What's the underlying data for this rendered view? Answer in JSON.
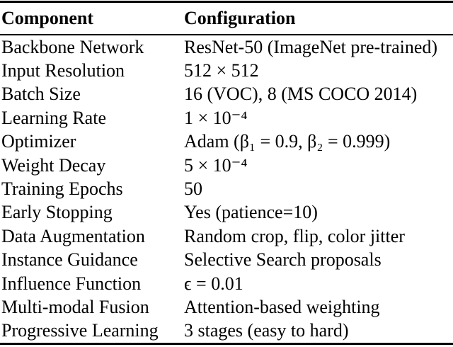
{
  "table": {
    "title": "training-configuration-table",
    "columns": [
      "Component",
      "Configuration"
    ],
    "rows": [
      {
        "component": "Backbone Network",
        "configuration": "ResNet-50 (ImageNet pre-trained)"
      },
      {
        "component": "Input Resolution",
        "configuration": "512 × 512"
      },
      {
        "component": "Batch Size",
        "configuration": "16 (VOC), 8 (MS COCO 2014)"
      },
      {
        "component": "Learning Rate",
        "configuration": "1 × 10⁻⁴"
      },
      {
        "component": "Optimizer",
        "configuration": "Adam (β₁ = 0.9, β₂ = 0.999)"
      },
      {
        "component": "Weight Decay",
        "configuration": "5 × 10⁻⁴"
      },
      {
        "component": "Training Epochs",
        "configuration": "50"
      },
      {
        "component": "Early Stopping",
        "configuration": "Yes (patience=10)"
      },
      {
        "component": "Data Augmentation",
        "configuration": "Random crop, flip, color jitter"
      },
      {
        "component": "Instance Guidance",
        "configuration": "Selective Search proposals"
      },
      {
        "component": "Influence Function",
        "configuration": "ϵ = 0.01"
      },
      {
        "component": "Multi-modal Fusion",
        "configuration": "Attention-based weighting"
      },
      {
        "component": "Progressive Learning",
        "configuration": "3 stages (easy to hard)"
      }
    ],
    "colors": {
      "text": "#000000",
      "background": "#ffffff",
      "rule": "#000000"
    }
  }
}
